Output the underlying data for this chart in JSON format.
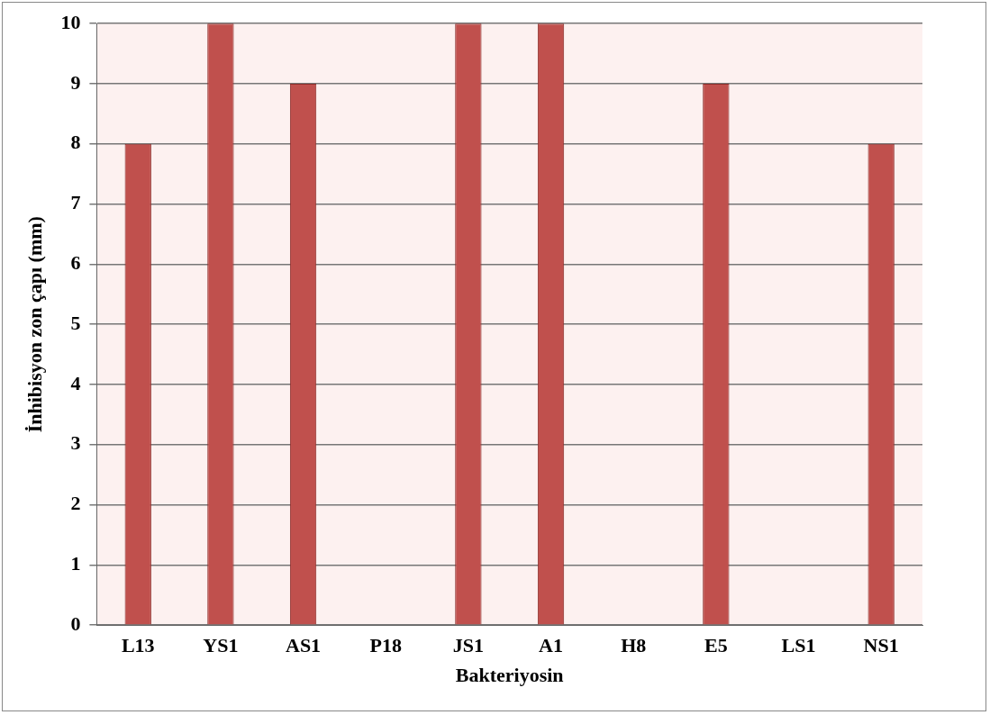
{
  "chart_data": {
    "type": "bar",
    "xlabel": "Bakteriyosin",
    "ylabel": "İnhibisyon zon çapı (mm)",
    "categories": [
      "L13",
      "YS1",
      "AS1",
      "P18",
      "JS1",
      "A1",
      "H8",
      "E5",
      "LS1",
      "NS1"
    ],
    "values": [
      8,
      10,
      9,
      0,
      10,
      10,
      0,
      9,
      0,
      8
    ],
    "color": "#c0504d",
    "ylim": [
      0,
      10
    ],
    "yticks": [
      0,
      1,
      2,
      3,
      4,
      5,
      6,
      7,
      8,
      9,
      10
    ],
    "grid": "y",
    "legend": false
  }
}
